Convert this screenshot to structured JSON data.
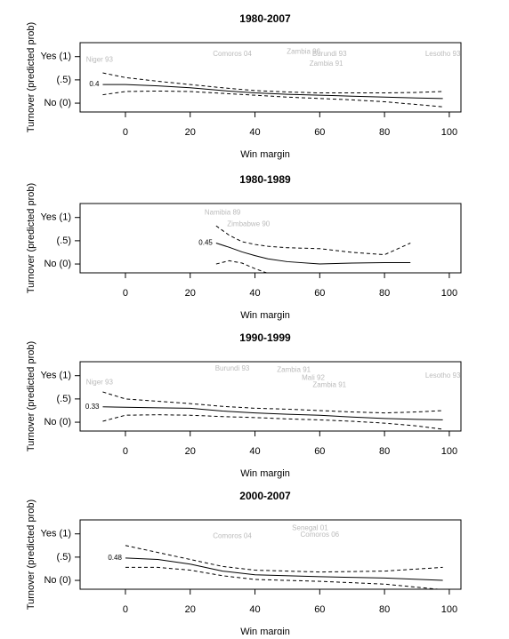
{
  "chart_data": [
    {
      "type": "line",
      "title": "1980-2007",
      "x_label": "Win margin",
      "y_label": "Turnover (predicted prob)",
      "xlim": [
        -14,
        103.6
      ],
      "ylim": [
        -0.19,
        1.3
      ],
      "xticks": [
        0,
        20,
        40,
        60,
        80,
        100
      ],
      "yticks": [
        {
          "value": 0,
          "label": "No (0)"
        },
        {
          "value": 0.5,
          "label": "(.5)"
        },
        {
          "value": 1,
          "label": "Yes (1)"
        }
      ],
      "x": [
        -7,
        0,
        10,
        20,
        30,
        40,
        50,
        60,
        70,
        80,
        90,
        98
      ],
      "fit": [
        0.4,
        0.4,
        0.37,
        0.33,
        0.27,
        0.22,
        0.19,
        0.17,
        0.15,
        0.13,
        0.11,
        0.1
      ],
      "upper": [
        0.65,
        0.55,
        0.47,
        0.4,
        0.33,
        0.27,
        0.24,
        0.22,
        0.22,
        0.22,
        0.23,
        0.25
      ],
      "lower": [
        0.18,
        0.25,
        0.26,
        0.25,
        0.21,
        0.17,
        0.13,
        0.1,
        0.07,
        0.03,
        -0.03,
        -0.08
      ],
      "fit_label": 0.4,
      "line_color": "#000000",
      "point_color": "#bbbbbb",
      "points": [
        {
          "label": "Niger 93",
          "x": -8,
          "y": 0.93
        },
        {
          "label": "Comoros 04",
          "x": 33,
          "y": 1.05
        },
        {
          "label": "Zambia 96",
          "x": 55,
          "y": 1.1
        },
        {
          "label": "Burundi 93",
          "x": 63,
          "y": 1.05
        },
        {
          "label": "Zambia 91",
          "x": 62,
          "y": 0.84
        },
        {
          "label": "Lesotho 93",
          "x": 98,
          "y": 1.05
        }
      ]
    },
    {
      "type": "line",
      "title": "1980-1989",
      "x_label": "Win margin",
      "y_label": "Turnover (predicted prob)",
      "xlim": [
        -14,
        103.6
      ],
      "ylim": [
        -0.19,
        1.3
      ],
      "xticks": [
        0,
        20,
        40,
        60,
        80,
        100
      ],
      "yticks": [
        {
          "value": 0,
          "label": "No (0)"
        },
        {
          "value": 0.5,
          "label": "(.5)"
        },
        {
          "value": 1,
          "label": "Yes (1)"
        }
      ],
      "x": [
        28,
        32,
        36,
        40,
        44,
        50,
        60,
        70,
        80,
        88
      ],
      "fit": [
        0.45,
        0.36,
        0.26,
        0.18,
        0.11,
        0.05,
        0.0,
        0.02,
        0.03,
        0.03
      ],
      "upper": [
        0.82,
        0.62,
        0.48,
        0.42,
        0.38,
        0.35,
        0.33,
        0.25,
        0.2,
        0.45
      ],
      "lower": [
        0.0,
        0.07,
        0.02,
        -0.1,
        -0.2,
        null,
        null,
        null,
        null,
        null
      ],
      "fit_label": 0.45,
      "line_color": "#000000",
      "point_color": "#bbbbbb",
      "points": [
        {
          "label": "Namibia 89",
          "x": 30,
          "y": 1.1
        },
        {
          "label": "Zimbabwe 90",
          "x": 38,
          "y": 0.85
        }
      ]
    },
    {
      "type": "line",
      "title": "1990-1999",
      "x_label": "Win margin",
      "y_label": "Turnover (predicted prob)",
      "xlim": [
        -14,
        103.6
      ],
      "ylim": [
        -0.19,
        1.3
      ],
      "xticks": [
        0,
        20,
        40,
        60,
        80,
        100
      ],
      "yticks": [
        {
          "value": 0,
          "label": "No (0)"
        },
        {
          "value": 0.5,
          "label": "(.5)"
        },
        {
          "value": 1,
          "label": "Yes (1)"
        }
      ],
      "x": [
        -7,
        0,
        10,
        20,
        30,
        40,
        50,
        60,
        70,
        80,
        90,
        98
      ],
      "fit": [
        0.33,
        0.32,
        0.31,
        0.3,
        0.24,
        0.2,
        0.17,
        0.15,
        0.11,
        0.08,
        0.06,
        0.05
      ],
      "upper": [
        0.65,
        0.5,
        0.45,
        0.4,
        0.34,
        0.3,
        0.28,
        0.25,
        0.22,
        0.2,
        0.22,
        0.25
      ],
      "lower": [
        0.02,
        0.15,
        0.16,
        0.15,
        0.12,
        0.1,
        0.07,
        0.05,
        0.02,
        -0.02,
        -0.08,
        -0.15
      ],
      "fit_label": 0.33,
      "line_color": "#000000",
      "point_color": "#bbbbbb",
      "points": [
        {
          "label": "Niger 93",
          "x": -8,
          "y": 0.85
        },
        {
          "label": "Burundi 93",
          "x": 33,
          "y": 1.15
        },
        {
          "label": "Zambia 91",
          "x": 52,
          "y": 1.12
        },
        {
          "label": "Mali 92",
          "x": 58,
          "y": 0.95
        },
        {
          "label": "Zambia 91",
          "x": 63,
          "y": 0.8
        },
        {
          "label": "Lesotho 93",
          "x": 98,
          "y": 1.0
        }
      ]
    },
    {
      "type": "line",
      "title": "2000-2007",
      "x_label": "Win margin",
      "y_label": "Turnover (predicted prob)",
      "xlim": [
        -14,
        103.6
      ],
      "ylim": [
        -0.19,
        1.3
      ],
      "xticks": [
        0,
        20,
        40,
        60,
        80,
        100
      ],
      "yticks": [
        {
          "value": 0,
          "label": "No (0)"
        },
        {
          "value": 0.5,
          "label": "(.5)"
        },
        {
          "value": 1,
          "label": "Yes (1)"
        }
      ],
      "x": [
        0,
        10,
        20,
        30,
        40,
        60,
        80,
        98
      ],
      "fit": [
        0.48,
        0.45,
        0.35,
        0.2,
        0.12,
        0.08,
        0.05,
        0.0
      ],
      "upper": [
        0.75,
        0.6,
        0.45,
        0.3,
        0.22,
        0.18,
        0.2,
        0.28
      ],
      "lower": [
        0.28,
        0.28,
        0.22,
        0.1,
        0.02,
        -0.02,
        -0.08,
        -0.2
      ],
      "fit_label": 0.48,
      "line_color": "#000000",
      "point_color": "#bbbbbb",
      "points": [
        {
          "label": "Comoros 04",
          "x": 33,
          "y": 0.95
        },
        {
          "label": "Senegal 01",
          "x": 57,
          "y": 1.12
        },
        {
          "label": "Comoros 06",
          "x": 60,
          "y": 0.98
        }
      ]
    }
  ]
}
